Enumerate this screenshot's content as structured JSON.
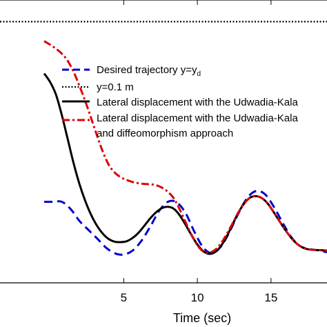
{
  "chart_data": {
    "type": "line",
    "xlabel": "Time (sec)",
    "xticks": [
      5,
      10,
      15
    ],
    "xlim": [
      -3.4,
      18.8
    ],
    "ylim": [
      -0.045,
      0.112
    ],
    "grid": false,
    "legend_position": "upper-right",
    "series": [
      {
        "name": "Desired trajectory y=y",
        "name_subscript": "d",
        "color": "#0000cc",
        "style": "dashed",
        "x": [
          -0.4,
          0.2,
          0.8,
          1.4,
          2.0,
          2.6,
          3.2,
          3.8,
          4.4,
          5.0,
          5.6,
          6.2,
          6.8,
          7.4,
          8.0,
          8.6,
          9.2,
          9.8,
          10.4,
          11.0,
          11.6,
          12.2,
          12.8,
          13.4,
          14.0,
          14.6,
          15.2,
          15.8,
          16.4,
          17.0,
          17.6,
          18.2,
          18.8
        ],
        "y": [
          0.0,
          0.0,
          0.0,
          -0.0041,
          -0.0107,
          -0.0156,
          -0.0204,
          -0.0255,
          -0.0286,
          -0.0293,
          -0.0271,
          -0.0217,
          -0.0138,
          -0.0051,
          0.0,
          -0.0003,
          -0.0063,
          -0.0167,
          -0.0254,
          -0.0285,
          -0.0248,
          -0.0164,
          -0.0062,
          0.0023,
          0.006,
          0.0041,
          -0.0029,
          -0.0118,
          -0.0199,
          -0.0247,
          -0.0262,
          -0.027,
          -0.028
        ]
      },
      {
        "name": "y=0.1 m",
        "color": "#000000",
        "style": "dotted",
        "x": [
          -3.4,
          18.8
        ],
        "y": [
          0.1,
          0.1
        ]
      },
      {
        "name": "Lateral displacement with the Udwadia-Kala",
        "color": "#000000",
        "style": "solid",
        "x": [
          -0.4,
          0.0,
          0.4,
          0.8,
          1.2,
          1.6,
          2.0,
          2.4,
          2.8,
          3.2,
          3.6,
          4.0,
          4.4,
          4.8,
          5.2,
          5.6,
          6.0,
          6.4,
          6.8,
          7.2,
          7.6,
          8.0,
          8.4,
          8.8,
          9.2,
          9.6,
          10.0,
          10.4,
          10.8,
          11.2,
          11.6,
          12.0,
          12.4,
          12.8,
          13.2,
          13.6,
          14.0,
          14.4,
          14.8,
          15.2,
          15.6,
          16.0,
          16.4,
          16.8,
          17.2,
          17.6,
          18.2,
          18.8
        ],
        "y": [
          0.0712,
          0.0665,
          0.0595,
          0.048,
          0.0347,
          0.0213,
          0.0097,
          0.0002,
          -0.0075,
          -0.0135,
          -0.0179,
          -0.0208,
          -0.0222,
          -0.0224,
          -0.0219,
          -0.0201,
          -0.0172,
          -0.0133,
          -0.0092,
          -0.0058,
          -0.0035,
          -0.0028,
          -0.0039,
          -0.0075,
          -0.0128,
          -0.0185,
          -0.0237,
          -0.0274,
          -0.0289,
          -0.0279,
          -0.0245,
          -0.0191,
          -0.0124,
          -0.0058,
          -0.0007,
          0.0024,
          0.0031,
          0.0019,
          -0.0012,
          -0.006,
          -0.0111,
          -0.016,
          -0.0203,
          -0.0236,
          -0.0256,
          -0.0265,
          -0.0268,
          -0.027
        ]
      },
      {
        "name": "Lateral displacement with the Udwadia-Kala and diffeomorphism approach",
        "color": "#dd0000",
        "style": "dashdot",
        "x": [
          -0.4,
          0.0,
          0.4,
          0.8,
          1.2,
          1.6,
          2.0,
          2.4,
          2.8,
          3.2,
          3.6,
          4.0,
          4.4,
          4.8,
          5.2,
          5.6,
          6.0,
          6.4,
          6.8,
          7.2,
          7.6,
          8.0,
          8.4,
          8.8,
          9.2,
          9.6,
          10.0,
          10.4,
          10.8,
          11.2,
          11.6,
          12.0,
          12.4,
          12.8,
          13.2,
          13.6,
          14.0,
          14.4,
          14.8,
          15.2,
          15.6,
          16.0,
          16.4,
          16.8,
          17.2,
          17.6,
          18.2,
          18.8
        ],
        "y": [
          0.0892,
          0.0872,
          0.085,
          0.0822,
          0.0782,
          0.0721,
          0.0642,
          0.0556,
          0.0461,
          0.0364,
          0.0274,
          0.0203,
          0.0161,
          0.0136,
          0.0121,
          0.011,
          0.0103,
          0.0099,
          0.0097,
          0.0092,
          0.0078,
          0.0055,
          0.0019,
          -0.0042,
          -0.0113,
          -0.0183,
          -0.0241,
          -0.0276,
          -0.0283,
          -0.0267,
          -0.0231,
          -0.0178,
          -0.0118,
          -0.0056,
          -0.0008,
          0.0024,
          0.0031,
          0.0019,
          -0.0012,
          -0.006,
          -0.0111,
          -0.016,
          -0.0203,
          -0.0236,
          -0.0256,
          -0.0265,
          -0.0268,
          -0.027
        ]
      }
    ]
  }
}
